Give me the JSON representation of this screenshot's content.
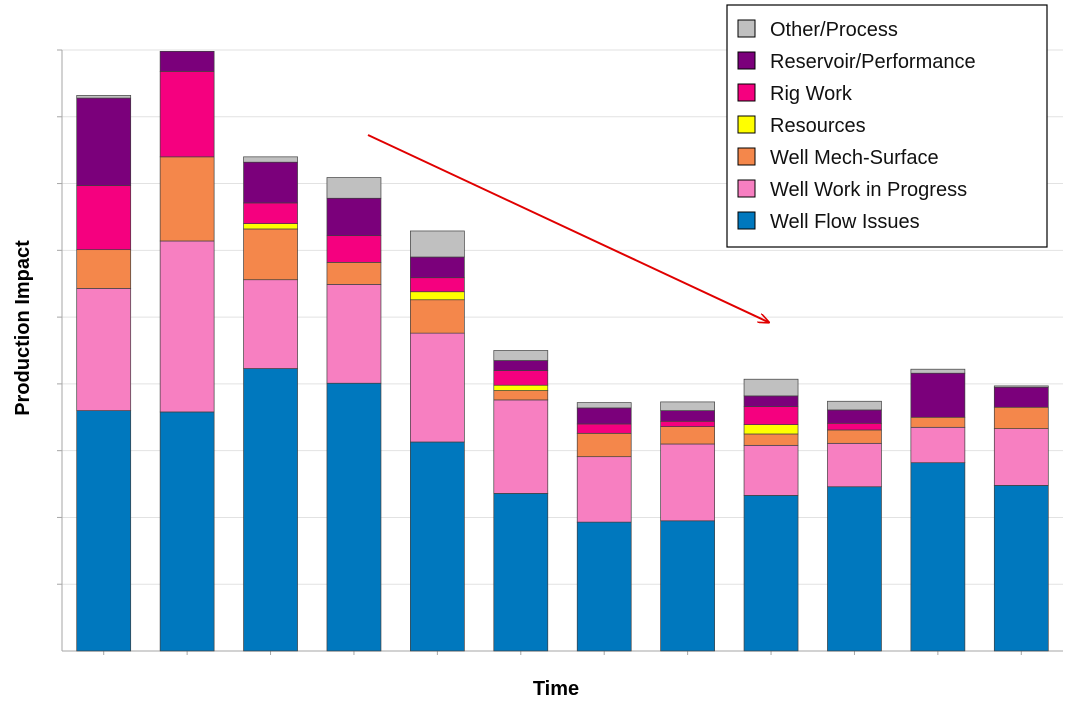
{
  "chart_data": {
    "type": "bar",
    "stacked": true,
    "xlabel": "Time",
    "ylabel": "Production Impact",
    "ylim": [
      0,
      9
    ],
    "grid": true,
    "legend_position": "top-right",
    "categories": [
      "",
      "",
      "",
      "",
      "",
      "",
      "",
      "",
      "",
      "",
      "",
      ""
    ],
    "series": [
      {
        "name": "Well Flow Issues",
        "color": "#0078BE",
        "values": [
          3.6,
          3.58,
          4.23,
          4.01,
          3.13,
          2.36,
          1.93,
          1.95,
          2.33,
          2.46,
          2.82,
          2.48
        ]
      },
      {
        "name": "Well Work in Progress",
        "color": "#F77FC1",
        "values": [
          1.83,
          2.56,
          1.33,
          1.48,
          1.63,
          1.4,
          0.98,
          1.15,
          0.75,
          0.65,
          0.53,
          0.85
        ]
      },
      {
        "name": "Well Mech-Surface",
        "color": "#F4874B",
        "values": [
          0.58,
          1.26,
          0.76,
          0.33,
          0.5,
          0.14,
          0.35,
          0.26,
          0.17,
          0.2,
          0.15,
          0.32
        ]
      },
      {
        "name": "Resources",
        "color": "#FFFF00",
        "values": [
          0,
          0,
          0.08,
          0,
          0.12,
          0.08,
          0,
          0,
          0.14,
          0,
          0,
          0
        ]
      },
      {
        "name": "Rig Work",
        "color": "#F5007F",
        "values": [
          0.96,
          1.28,
          0.31,
          0.4,
          0.21,
          0.22,
          0.14,
          0.08,
          0.27,
          0.1,
          0,
          0
        ]
      },
      {
        "name": "Reservoir/Performance",
        "color": "#7B007B",
        "values": [
          1.31,
          0.3,
          0.61,
          0.56,
          0.31,
          0.15,
          0.24,
          0.16,
          0.16,
          0.2,
          0.66,
          0.3
        ]
      },
      {
        "name": "Other/Process",
        "color": "#C0C0C0",
        "values": [
          0.04,
          0,
          0.08,
          0.31,
          0.39,
          0.15,
          0.08,
          0.13,
          0.25,
          0.13,
          0.06,
          0.02
        ]
      }
    ],
    "legend_order": [
      "Other/Process",
      "Reservoir/Performance",
      "Rig Work",
      "Resources",
      "Well Mech-Surface",
      "Well Work in Progress",
      "Well Flow Issues"
    ],
    "annotation": {
      "type": "arrow",
      "color": "#E00000",
      "description": "downward trend arrow"
    }
  }
}
